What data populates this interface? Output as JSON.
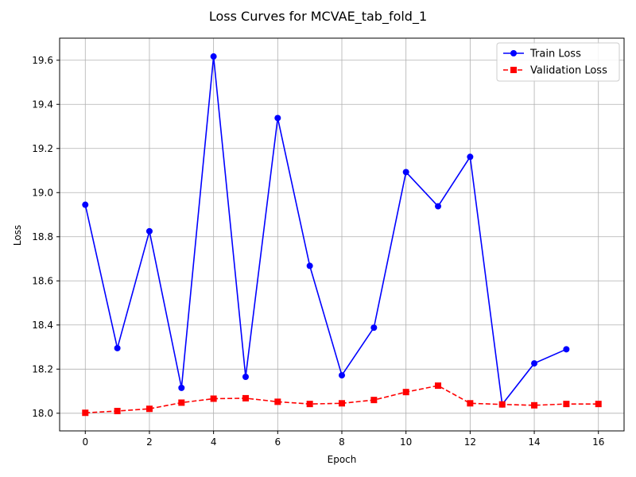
{
  "chart_data": {
    "type": "line",
    "title": "Loss Curves for MCVAE_tab_fold_1",
    "xlabel": "Epoch",
    "ylabel": "Loss",
    "xlim": [
      -0.8,
      16.8
    ],
    "ylim": [
      17.92,
      19.7
    ],
    "xticks": [
      0,
      2,
      4,
      6,
      8,
      10,
      12,
      14,
      16
    ],
    "yticks": [
      18.0,
      18.2,
      18.4,
      18.6,
      18.8,
      19.0,
      19.2,
      19.4,
      19.6
    ],
    "grid": true,
    "legend_position": "top-right",
    "series": [
      {
        "name": "Train Loss",
        "color": "#0000ff",
        "line_style": "solid",
        "marker": "circle",
        "x": [
          0,
          1,
          2,
          3,
          4,
          5,
          6,
          7,
          8,
          9,
          10,
          11,
          12,
          13,
          14,
          15
        ],
        "y": [
          18.945,
          18.295,
          18.825,
          18.115,
          19.617,
          18.165,
          19.338,
          18.668,
          18.172,
          18.388,
          19.093,
          18.938,
          19.162,
          18.04,
          18.226,
          18.29
        ]
      },
      {
        "name": "Validation Loss",
        "color": "#ff0000",
        "line_style": "dashed",
        "marker": "square",
        "x": [
          0,
          1,
          2,
          3,
          4,
          5,
          6,
          7,
          8,
          9,
          10,
          11,
          12,
          13,
          14,
          15,
          16
        ],
        "y": [
          18.002,
          18.01,
          18.02,
          18.048,
          18.066,
          18.068,
          18.052,
          18.042,
          18.045,
          18.06,
          18.096,
          18.125,
          18.045,
          18.04,
          18.036,
          18.042,
          18.042
        ]
      }
    ]
  }
}
